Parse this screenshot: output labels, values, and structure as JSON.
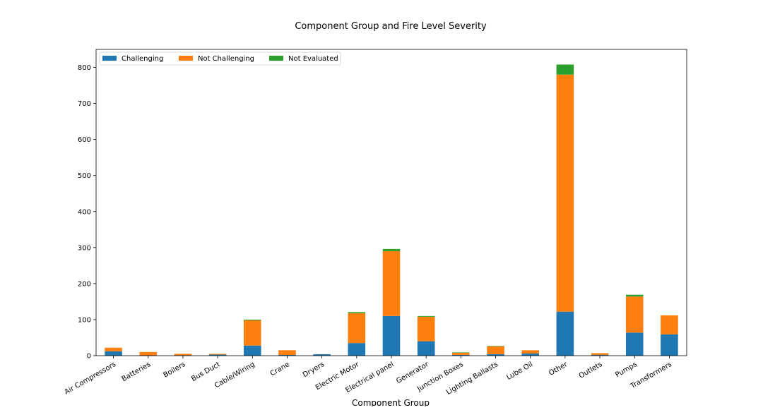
{
  "chart_data": {
    "type": "bar",
    "stacked": true,
    "title": "Component Group and Fire Level Severity",
    "xlabel": "Component Group",
    "ylabel": "",
    "ylim": [
      0,
      850
    ],
    "yticks": [
      0,
      100,
      200,
      300,
      400,
      500,
      600,
      700,
      800
    ],
    "grid": false,
    "legend_position": "top-left",
    "categories": [
      "Air Compressors",
      "Batteries",
      "Boilers",
      "Bus Duct",
      "Cable/Wiring",
      "Crane",
      "Dryers",
      "Electric Motor",
      "Electrical panel",
      "Generator",
      "Junction Boxes",
      "Lighting Ballasts",
      "Lube Oil",
      "Other",
      "Outlets",
      "Pumps",
      "Transformers"
    ],
    "series": [
      {
        "name": "Challenging",
        "color": "#1f77b4",
        "values": [
          12,
          1,
          1,
          3,
          28,
          2,
          4,
          35,
          110,
          40,
          2,
          4,
          6,
          122,
          2,
          64,
          59
        ]
      },
      {
        "name": "Not Challenging",
        "color": "#ff7f0e",
        "values": [
          10,
          9,
          4,
          2,
          70,
          13,
          0,
          83,
          180,
          68,
          6,
          22,
          9,
          658,
          5,
          100,
          53
        ]
      },
      {
        "name": "Not Evaluated",
        "color": "#2ca02c",
        "values": [
          0,
          0,
          0,
          0,
          2,
          0,
          0,
          3,
          6,
          2,
          1,
          1,
          0,
          28,
          0,
          5,
          0
        ]
      }
    ]
  }
}
